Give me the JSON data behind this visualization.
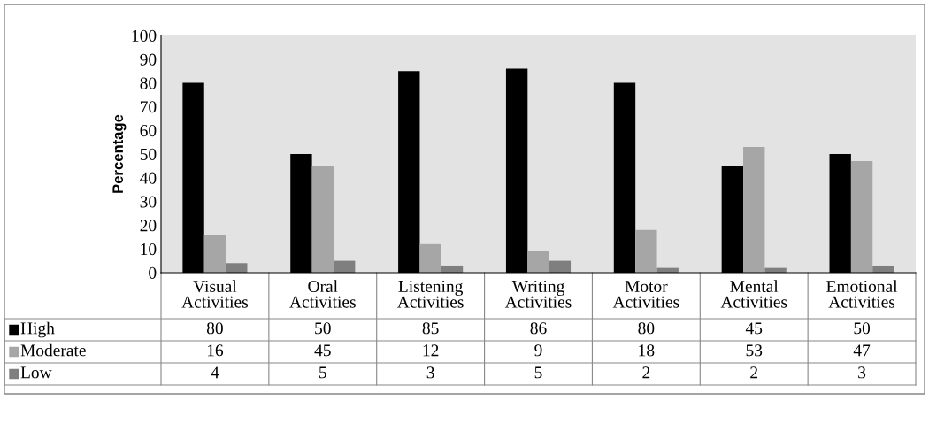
{
  "chart_data": {
    "type": "bar",
    "ylabel": "Percentage",
    "categories": [
      "Visual\nActivities",
      "Oral\nActivities",
      "Listening\nActivities",
      "Writing\nActivities",
      "Motor\nActivities",
      "Mental\nActivities",
      "Emotional\nActivities"
    ],
    "series": [
      {
        "name": "High",
        "color": "#000000",
        "values": [
          80,
          50,
          85,
          86,
          80,
          45,
          50
        ]
      },
      {
        "name": "Moderate",
        "color": "#a6a6a6",
        "values": [
          16,
          45,
          12,
          9,
          18,
          53,
          47
        ]
      },
      {
        "name": "Low",
        "color": "#7f7f7f",
        "values": [
          4,
          5,
          3,
          5,
          2,
          2,
          3
        ]
      }
    ],
    "ylim": [
      0,
      100
    ],
    "yticks": [
      0,
      10,
      20,
      30,
      40,
      50,
      60,
      70,
      80,
      90,
      100
    ],
    "data_labels": true,
    "legend": "bottom",
    "grid": false
  }
}
